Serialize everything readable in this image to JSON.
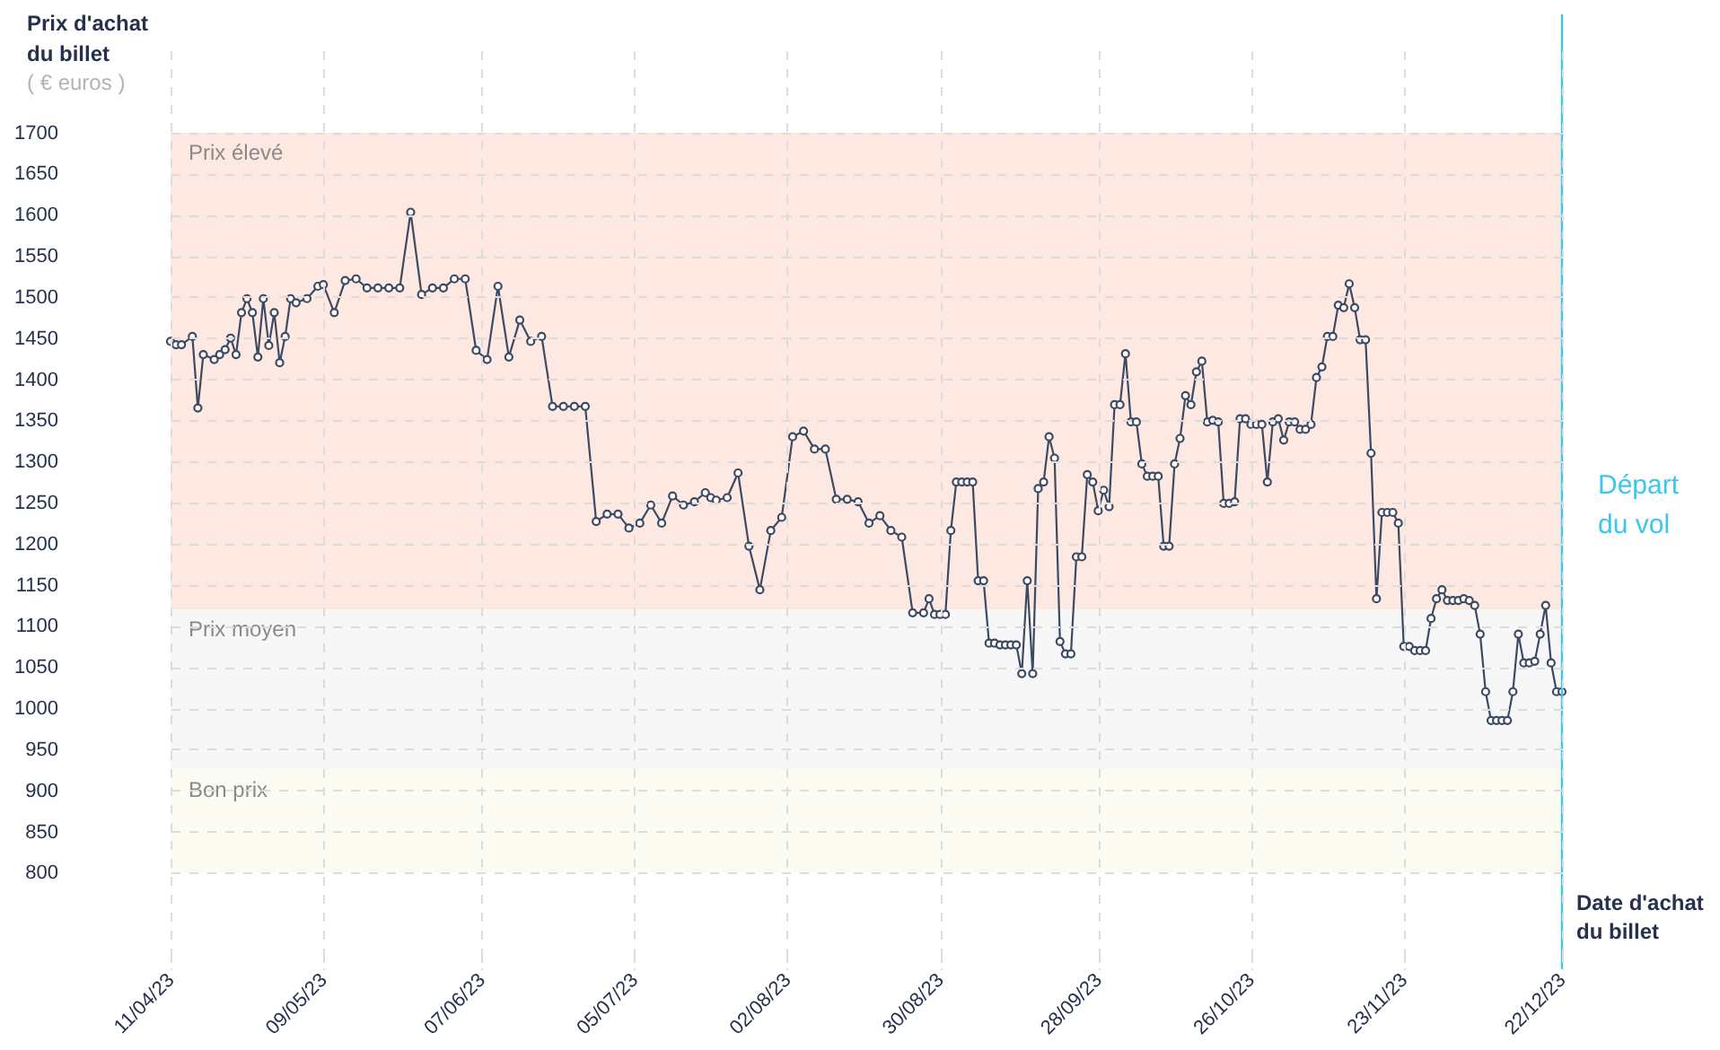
{
  "chart_data": {
    "type": "line",
    "ylabel": "Prix d'achat du billet",
    "xlabel": "Date d'achat du billet",
    "annotations": [
      "( € euros )"
    ],
    "x": [
      "2023-04-11",
      "2023-04-12",
      "2023-04-13",
      "2023-04-15",
      "2023-04-16",
      "2023-04-17",
      "2023-04-19",
      "2023-04-20",
      "2023-04-21",
      "2023-04-22",
      "2023-04-23",
      "2023-04-24",
      "2023-04-25",
      "2023-04-26",
      "2023-04-27",
      "2023-04-28",
      "2023-04-29",
      "2023-04-30",
      "2023-05-01",
      "2023-05-02",
      "2023-05-03",
      "2023-05-04",
      "2023-05-06",
      "2023-05-08",
      "2023-05-09",
      "2023-05-11",
      "2023-05-13",
      "2023-05-15",
      "2023-05-17",
      "2023-05-19",
      "2023-05-21",
      "2023-05-23",
      "2023-05-25",
      "2023-05-27",
      "2023-05-29",
      "2023-05-31",
      "2023-06-02",
      "2023-06-04",
      "2023-06-06",
      "2023-06-08",
      "2023-06-10",
      "2023-06-12",
      "2023-06-14",
      "2023-06-16",
      "2023-06-18",
      "2023-06-20",
      "2023-06-22",
      "2023-06-24",
      "2023-06-26",
      "2023-06-28",
      "2023-06-30",
      "2023-07-02",
      "2023-07-04",
      "2023-07-06",
      "2023-07-08",
      "2023-07-10",
      "2023-07-12",
      "2023-07-14",
      "2023-07-16",
      "2023-07-18",
      "2023-07-19",
      "2023-07-20",
      "2023-07-22",
      "2023-07-24",
      "2023-07-26",
      "2023-07-28",
      "2023-07-30",
      "2023-08-01",
      "2023-08-03",
      "2023-08-05",
      "2023-08-07",
      "2023-08-09",
      "2023-08-11",
      "2023-08-13",
      "2023-08-15",
      "2023-08-17",
      "2023-08-19",
      "2023-08-21",
      "2023-08-23",
      "2023-08-25",
      "2023-08-27",
      "2023-08-28",
      "2023-08-29",
      "2023-08-30",
      "2023-08-31",
      "2023-09-01",
      "2023-09-02",
      "2023-09-03",
      "2023-09-04",
      "2023-09-05",
      "2023-09-06",
      "2023-09-07",
      "2023-09-08",
      "2023-09-09",
      "2023-09-10",
      "2023-09-11",
      "2023-09-12",
      "2023-09-13",
      "2023-09-14",
      "2023-09-15",
      "2023-09-16",
      "2023-09-17",
      "2023-09-18",
      "2023-09-19",
      "2023-09-20",
      "2023-09-21",
      "2023-09-22",
      "2023-09-23",
      "2023-09-24",
      "2023-09-25",
      "2023-09-26",
      "2023-09-27",
      "2023-09-28",
      "2023-09-29",
      "2023-09-30",
      "2023-10-01",
      "2023-10-02",
      "2023-10-03",
      "2023-10-04",
      "2023-10-05",
      "2023-10-06",
      "2023-10-07",
      "2023-10-08",
      "2023-10-09",
      "2023-10-10",
      "2023-10-11",
      "2023-10-12",
      "2023-10-13",
      "2023-10-14",
      "2023-10-15",
      "2023-10-16",
      "2023-10-17",
      "2023-10-18",
      "2023-10-19",
      "2023-10-20",
      "2023-10-21",
      "2023-10-22",
      "2023-10-23",
      "2023-10-24",
      "2023-10-25",
      "2023-10-26",
      "2023-10-27",
      "2023-10-28",
      "2023-10-29",
      "2023-10-30",
      "2023-10-31",
      "2023-11-01",
      "2023-11-02",
      "2023-11-03",
      "2023-11-04",
      "2023-11-05",
      "2023-11-06",
      "2023-11-07",
      "2023-11-08",
      "2023-11-09",
      "2023-11-10",
      "2023-11-11",
      "2023-11-12",
      "2023-11-13",
      "2023-11-14",
      "2023-11-15",
      "2023-11-16",
      "2023-11-17",
      "2023-11-18",
      "2023-11-19",
      "2023-11-20",
      "2023-11-21",
      "2023-11-22",
      "2023-11-23",
      "2023-11-24",
      "2023-11-25",
      "2023-11-26",
      "2023-11-27",
      "2023-11-28",
      "2023-11-29",
      "2023-11-30",
      "2023-12-01",
      "2023-12-02",
      "2023-12-03",
      "2023-12-04",
      "2023-12-05",
      "2023-12-06",
      "2023-12-07",
      "2023-12-08",
      "2023-12-09",
      "2023-12-10",
      "2023-12-11",
      "2023-12-12",
      "2023-12-13",
      "2023-12-14",
      "2023-12-15",
      "2023-12-16",
      "2023-12-17",
      "2023-12-18",
      "2023-12-19",
      "2023-12-20",
      "2023-12-21",
      "2023-12-22"
    ],
    "series": [
      {
        "color": "#3d4a63",
        "values": [
          1446,
          1442,
          1442,
          1452,
          1365,
          1430,
          1424,
          1430,
          1436,
          1450,
          1430,
          1481,
          1498,
          1481,
          1427,
          1498,
          1441,
          1481,
          1420,
          1452,
          1498,
          1493,
          1498,
          1513,
          1515,
          1481,
          1520,
          1522,
          1511,
          1511,
          1511,
          1511,
          1603,
          1503,
          1511,
          1511,
          1522,
          1522,
          1435,
          1424,
          1513,
          1427,
          1472,
          1446,
          1452,
          1367,
          1367,
          1367,
          1367,
          1227,
          1236,
          1236,
          1219,
          1225,
          1247,
          1225,
          1258,
          1247,
          1251,
          1262,
          1256,
          1253,
          1256,
          1286,
          1197,
          1144,
          1216,
          1232,
          1330,
          1337,
          1315,
          1315,
          1254,
          1254,
          1251,
          1225,
          1234,
          1216,
          1208,
          1116,
          1116,
          1133,
          1114,
          1114,
          1114,
          1216,
          1275,
          1275,
          1275,
          1275,
          1155,
          1155,
          1079,
          1079,
          1077,
          1077,
          1077,
          1077,
          1042,
          1155,
          1042,
          1267,
          1275,
          1330,
          1304,
          1081,
          1066,
          1066,
          1184,
          1184,
          1284,
          1275,
          1240,
          1265,
          1245,
          1369,
          1369,
          1431,
          1348,
          1348,
          1297,
          1282,
          1282,
          1282,
          1197,
          1197,
          1297,
          1328,
          1380,
          1369,
          1409,
          1422,
          1348,
          1350,
          1348,
          1249,
          1249,
          1251,
          1352,
          1352,
          1345,
          1345,
          1345,
          1275,
          1348,
          1352,
          1326,
          1348,
          1348,
          1339,
          1339,
          1345,
          1402,
          1415,
          1452,
          1452,
          1490,
          1487,
          1516,
          1487,
          1448,
          1448,
          1310,
          1133,
          1238,
          1238,
          1238,
          1225,
          1075,
          1075,
          1070,
          1070,
          1070,
          1109,
          1133,
          1144,
          1131,
          1131,
          1131,
          1133,
          1131,
          1125,
          1090,
          1020,
          985,
          985,
          985,
          985,
          1020,
          1090,
          1055,
          1055,
          1057,
          1090,
          1125,
          1055,
          1020,
          1020
        ]
      }
    ],
    "xlim": [
      "2023-04-11",
      "2023-12-22"
    ],
    "xticks": [
      {
        "value": "2023-04-11",
        "label": "11/04/23"
      },
      {
        "value": "2023-05-09",
        "label": "09/05/23"
      },
      {
        "value": "2023-06-07",
        "label": "07/06/23"
      },
      {
        "value": "2023-07-05",
        "label": "05/07/23"
      },
      {
        "value": "2023-08-02",
        "label": "02/08/23"
      },
      {
        "value": "2023-08-30",
        "label": "30/08/23"
      },
      {
        "value": "2023-09-28",
        "label": "28/09/23"
      },
      {
        "value": "2023-10-26",
        "label": "26/10/23"
      },
      {
        "value": "2023-11-23",
        "label": "23/11/23"
      },
      {
        "value": "2023-12-22",
        "label": "22/12/23"
      }
    ],
    "ylim": [
      700,
      1800
    ],
    "yticks": [
      800,
      850,
      900,
      950,
      1000,
      1050,
      1100,
      1150,
      1200,
      1250,
      1300,
      1350,
      1400,
      1450,
      1500,
      1550,
      1600,
      1650,
      1700
    ],
    "bands": [
      {
        "axis": "y",
        "from": 1120,
        "to": 1700,
        "label": "Prix élevé",
        "color": "#fde8e2"
      },
      {
        "axis": "y",
        "from": 925,
        "to": 1120,
        "label": "Prix moyen",
        "color": "#f7f7f7"
      },
      {
        "axis": "y",
        "from": 800,
        "to": 925,
        "label": "Bon prix",
        "color": "#fbfbf2"
      }
    ],
    "ref_lines": [
      {
        "axis": "x",
        "value": "2023-12-22",
        "label": "Départ du vol",
        "color": "#3cc6ef"
      }
    ],
    "grid": true,
    "marker": "circle",
    "line_style": "solid"
  }
}
